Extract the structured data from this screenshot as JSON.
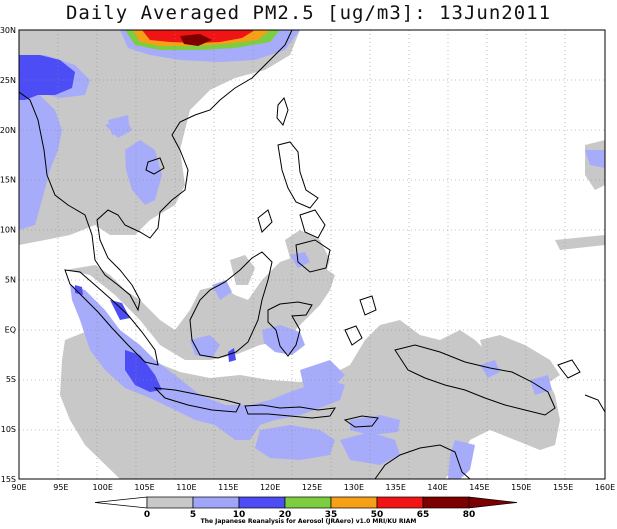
{
  "title": "Daily Averaged PM2.5 [ug/m3]: 13Jun2011",
  "credit": "The Japanese Reanalysis for Aerosol (JRAero) v1.0 MRI/KU RIAM",
  "map": {
    "lon_labels": [
      "90E",
      "95E",
      "100E",
      "105E",
      "110E",
      "115E",
      "120E",
      "125E",
      "130E",
      "135E",
      "140E",
      "145E",
      "150E",
      "155E",
      "160E"
    ],
    "lat_labels": [
      "30N",
      "25N",
      "20N",
      "15N",
      "10N",
      "5N",
      "EQ",
      "5S",
      "10S",
      "15S"
    ]
  },
  "colorbar": {
    "labels": [
      "0",
      "5",
      "10",
      "20",
      "35",
      "50",
      "65",
      "80"
    ],
    "colors": [
      "#ffffff",
      "#c8c8c8",
      "#9fa6fa",
      "#4d4df5",
      "#7ccd3f",
      "#f5a017",
      "#f01414",
      "#7d0000"
    ]
  },
  "colors": {
    "grey": "#c8c8c8",
    "light_blue": "#a7acfa",
    "blue": "#4d4df5",
    "green": "#7ccd3f",
    "orange": "#f5a017",
    "red": "#f01414",
    "dark_red": "#7d0000"
  }
}
